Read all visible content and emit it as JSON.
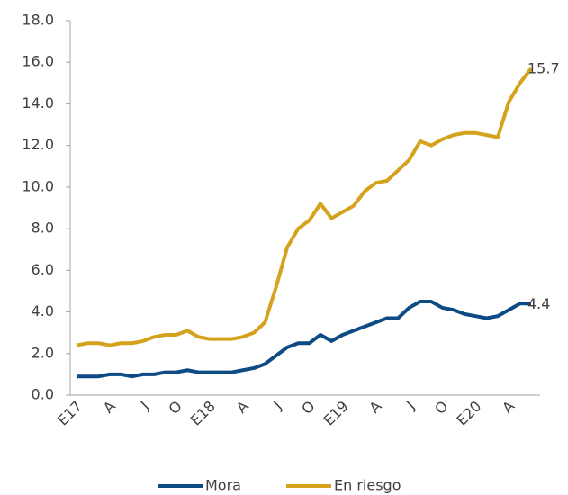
{
  "chart_data": {
    "type": "line",
    "categories": [
      "E17",
      null,
      null,
      "A",
      null,
      null,
      "J",
      null,
      null,
      "O",
      null,
      null,
      "E18",
      null,
      null,
      "A",
      null,
      null,
      "J",
      null,
      null,
      "O",
      null,
      null,
      "E19",
      null,
      null,
      "A",
      null,
      null,
      "J",
      null,
      null,
      "O",
      null,
      null,
      "E20",
      null,
      null,
      "A",
      null,
      null
    ],
    "series": [
      {
        "name": "Mora",
        "color": "#0e4a84",
        "values": [
          0.9,
          0.9,
          0.9,
          1.0,
          1.0,
          0.9,
          1.0,
          1.0,
          1.1,
          1.1,
          1.2,
          1.1,
          1.1,
          1.1,
          1.1,
          1.2,
          1.3,
          1.5,
          1.9,
          2.3,
          2.5,
          2.5,
          2.9,
          2.6,
          2.9,
          3.1,
          3.3,
          3.5,
          3.7,
          3.7,
          4.2,
          4.5,
          4.5,
          4.2,
          4.1,
          3.9,
          3.8,
          3.7,
          3.8,
          4.1,
          4.4,
          4.4
        ]
      },
      {
        "name": "En riesgo",
        "color": "#d4a21c",
        "values": [
          2.4,
          2.5,
          2.5,
          2.4,
          2.5,
          2.5,
          2.6,
          2.8,
          2.9,
          2.9,
          3.1,
          2.8,
          2.7,
          2.7,
          2.7,
          2.8,
          3.0,
          3.5,
          5.2,
          7.1,
          8.0,
          8.4,
          9.2,
          8.5,
          8.8,
          9.1,
          9.8,
          10.2,
          10.3,
          10.8,
          11.3,
          12.2,
          12.0,
          12.3,
          12.5,
          12.6,
          12.6,
          12.5,
          12.4,
          14.1,
          15.0,
          15.7
        ]
      }
    ],
    "ylim": [
      0,
      18
    ],
    "yticks": [
      {
        "value": 0,
        "label": "0.0"
      },
      {
        "value": 2,
        "label": "2.0"
      },
      {
        "value": 4,
        "label": "4.0"
      },
      {
        "value": 6,
        "label": "6.0"
      },
      {
        "value": 8,
        "label": "8.0"
      },
      {
        "value": 10,
        "label": "10.0"
      },
      {
        "value": 12,
        "label": "12.0"
      },
      {
        "value": 14,
        "label": "14.0"
      },
      {
        "value": 16,
        "label": "16.0"
      },
      {
        "value": 18,
        "label": "18.0"
      }
    ],
    "legend": "bottom"
  }
}
